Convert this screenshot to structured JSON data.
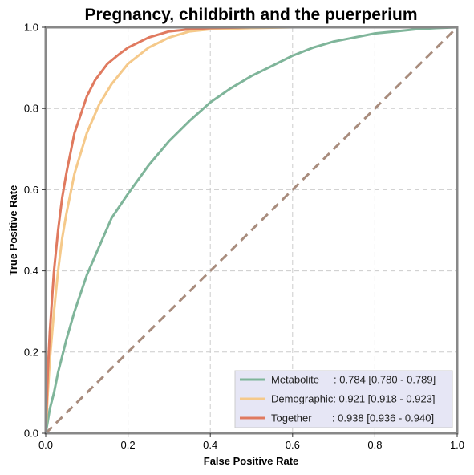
{
  "chart_data": {
    "type": "line",
    "title": "Pregnancy, childbirth and the puerperium",
    "xlabel": "False Positive Rate",
    "ylabel": "True Positive Rate",
    "xlim": [
      0,
      1
    ],
    "ylim": [
      0,
      1
    ],
    "grid": true,
    "legend_position": "bottom-right",
    "x_ticks": [
      "0.0",
      "0.2",
      "0.4",
      "0.6",
      "0.8",
      "1.0"
    ],
    "y_ticks": [
      "0.0",
      "0.2",
      "0.4",
      "0.6",
      "0.8",
      "1.0"
    ],
    "series": [
      {
        "name": "Metabolite",
        "legend_label": "Metabolite     : 0.784 [0.780 - 0.789]",
        "color": "#7fb59a",
        "x": [
          0,
          0.005,
          0.01,
          0.02,
          0.03,
          0.05,
          0.07,
          0.1,
          0.13,
          0.16,
          0.2,
          0.25,
          0.3,
          0.35,
          0.4,
          0.45,
          0.5,
          0.55,
          0.6,
          0.65,
          0.7,
          0.75,
          0.8,
          0.85,
          0.9,
          0.95,
          1.0
        ],
        "y": [
          0,
          0.03,
          0.06,
          0.1,
          0.15,
          0.23,
          0.3,
          0.39,
          0.46,
          0.53,
          0.59,
          0.66,
          0.72,
          0.77,
          0.815,
          0.85,
          0.88,
          0.905,
          0.93,
          0.95,
          0.965,
          0.975,
          0.985,
          0.99,
          0.995,
          0.998,
          1.0
        ]
      },
      {
        "name": "Demographic",
        "legend_label": "Demographic: 0.921 [0.918 - 0.923]",
        "color": "#f5c98a",
        "x": [
          0,
          0.005,
          0.01,
          0.02,
          0.03,
          0.04,
          0.05,
          0.07,
          0.1,
          0.13,
          0.16,
          0.2,
          0.25,
          0.3,
          0.35,
          0.4,
          0.5,
          0.6,
          0.8,
          1.0
        ],
        "y": [
          0,
          0.1,
          0.18,
          0.3,
          0.4,
          0.48,
          0.54,
          0.64,
          0.74,
          0.81,
          0.86,
          0.91,
          0.95,
          0.975,
          0.99,
          0.995,
          0.998,
          1.0,
          1.0,
          1.0
        ]
      },
      {
        "name": "Together",
        "legend_label": "Together       : 0.938 [0.936 - 0.940]",
        "color": "#e07a5f",
        "x": [
          0,
          0.005,
          0.01,
          0.02,
          0.03,
          0.04,
          0.05,
          0.07,
          0.1,
          0.12,
          0.15,
          0.18,
          0.2,
          0.25,
          0.3,
          0.35,
          0.4,
          0.5,
          0.6,
          0.8,
          1.0
        ],
        "y": [
          0,
          0.15,
          0.25,
          0.4,
          0.5,
          0.58,
          0.64,
          0.74,
          0.83,
          0.87,
          0.91,
          0.935,
          0.95,
          0.975,
          0.99,
          0.995,
          0.998,
          1.0,
          1.0,
          1.0,
          1.0
        ]
      }
    ],
    "reference_line": {
      "x": [
        0,
        1
      ],
      "y": [
        0,
        1
      ],
      "color": "#a88c7d",
      "style": "dashed"
    },
    "frame_color": "#888888",
    "grid_color": "#cccccc",
    "legend_background": "#e6e6f5"
  }
}
